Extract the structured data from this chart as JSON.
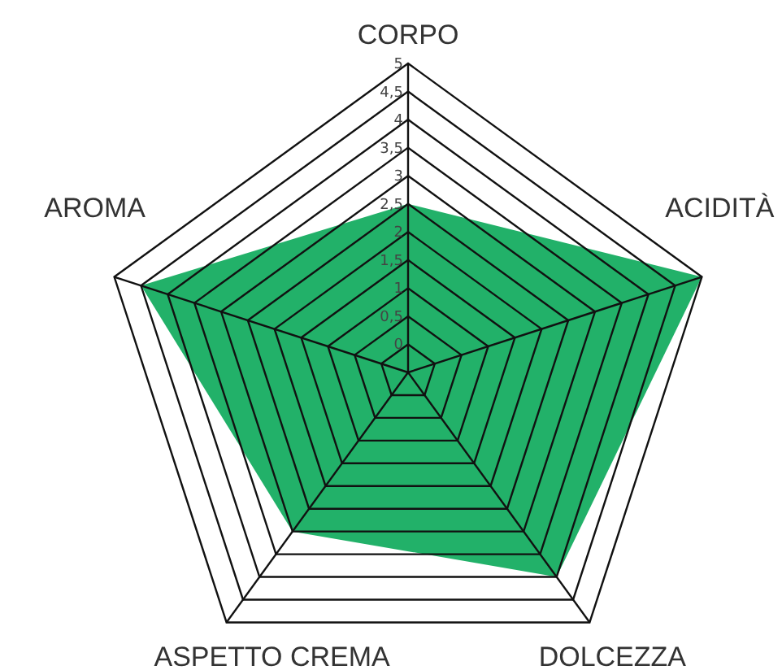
{
  "chart_data": {
    "type": "radar",
    "categories": [
      "CORPO",
      "ACIDITÀ",
      "DOLCEZZA",
      "ASPETTO CREMA",
      "AROMA"
    ],
    "series": [
      {
        "color": "#22b169",
        "values": [
          2.5,
          5,
          4,
          3,
          4.5
        ]
      }
    ],
    "ylim": [
      -0.5,
      5
    ],
    "yticks": [
      0,
      {
        "value": 0.5,
        "label": "0,5"
      },
      1,
      {
        "value": 1.5,
        "label": "1,5"
      },
      2,
      {
        "value": 2.5,
        "label": "2,5"
      },
      3,
      {
        "value": 3.5,
        "label": "3,5"
      },
      4,
      {
        "value": 4.5,
        "label": "4,5"
      },
      5
    ],
    "grid": true,
    "marker": "none"
  }
}
